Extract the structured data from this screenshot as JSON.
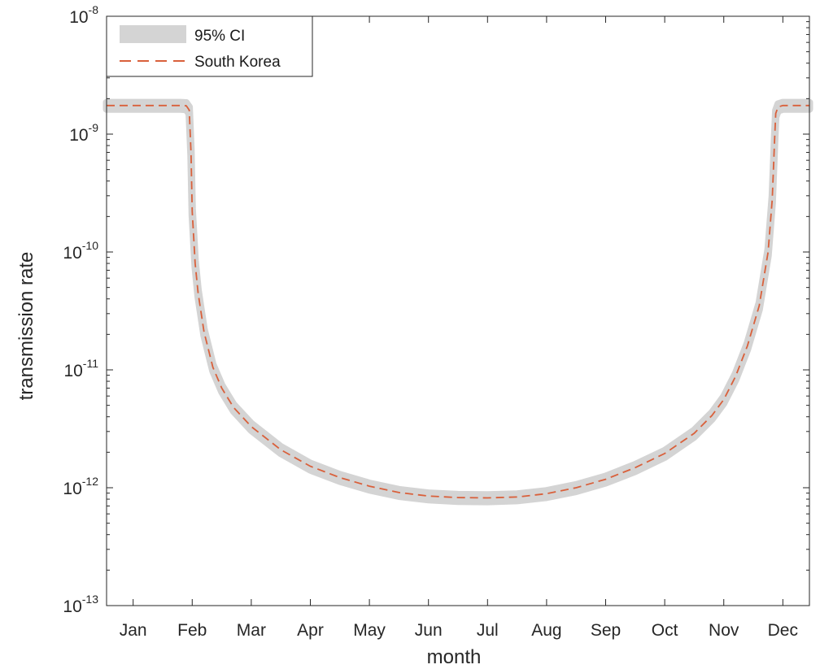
{
  "chart_data": {
    "type": "line",
    "xlabel": "month",
    "ylabel": "transmission rate",
    "y_scale": "log",
    "ylim": [
      1e-13,
      1e-08
    ],
    "y_ticks": [
      {
        "base": "10",
        "exp": "-13",
        "value": 1e-13
      },
      {
        "base": "10",
        "exp": "-12",
        "value": 1e-12
      },
      {
        "base": "10",
        "exp": "-11",
        "value": 1e-11
      },
      {
        "base": "10",
        "exp": "-10",
        "value": 1e-10
      },
      {
        "base": "10",
        "exp": "-9",
        "value": 1e-09
      },
      {
        "base": "10",
        "exp": "-8",
        "value": 1e-08
      }
    ],
    "x_ticks": [
      "Jan",
      "Feb",
      "Mar",
      "Apr",
      "May",
      "Jun",
      "Jul",
      "Aug",
      "Sep",
      "Oct",
      "Nov",
      "Dec"
    ],
    "x_unit": "month",
    "xlim": [
      0.55,
      12.45
    ],
    "grid": false,
    "legend": {
      "position": "top-left",
      "entries": [
        {
          "label": "95% CI",
          "kind": "band",
          "color": "#d4d4d4"
        },
        {
          "label": "South Korea",
          "kind": "dashed-line",
          "color": "#d9603b"
        }
      ]
    },
    "series": [
      {
        "name": "South Korea",
        "color": "#d9603b",
        "style": "dashed",
        "x": [
          0.55,
          0.8,
          1.2,
          1.6,
          1.8,
          1.9,
          1.95,
          1.98,
          2.0,
          2.05,
          2.1,
          2.2,
          2.35,
          2.5,
          2.7,
          3.0,
          3.5,
          4.0,
          4.5,
          5.0,
          5.5,
          6.0,
          6.5,
          7.0,
          7.5,
          8.0,
          8.5,
          9.0,
          9.5,
          10.0,
          10.5,
          10.8,
          11.0,
          11.2,
          11.4,
          11.6,
          11.75,
          11.82,
          11.86,
          11.88,
          11.92,
          12.0,
          12.1,
          12.45
        ],
        "values": [
          1.75e-09,
          1.75e-09,
          1.75e-09,
          1.75e-09,
          1.75e-09,
          1.74e-09,
          1.6e-09,
          7e-10,
          2.2e-10,
          8e-11,
          4.5e-11,
          2.1e-11,
          1.05e-11,
          7e-12,
          4.8e-12,
          3.3e-12,
          2.1e-12,
          1.52e-12,
          1.22e-12,
          1.03e-12,
          9.1e-13,
          8.5e-13,
          8.25e-13,
          8.2e-13,
          8.35e-13,
          8.9e-13,
          1e-12,
          1.18e-12,
          1.48e-12,
          1.95e-12,
          2.9e-12,
          4.1e-12,
          5.6e-12,
          8.8e-12,
          1.6e-11,
          3.5e-11,
          1e-10,
          2.8e-10,
          9e-10,
          1.5e-09,
          1.7e-09,
          1.75e-09,
          1.75e-09,
          1.75e-09
        ]
      }
    ],
    "ci_band": {
      "name": "95% CI",
      "color": "#d4d4d4",
      "lower_factor": 0.93,
      "upper_factor": 1.06
    }
  }
}
